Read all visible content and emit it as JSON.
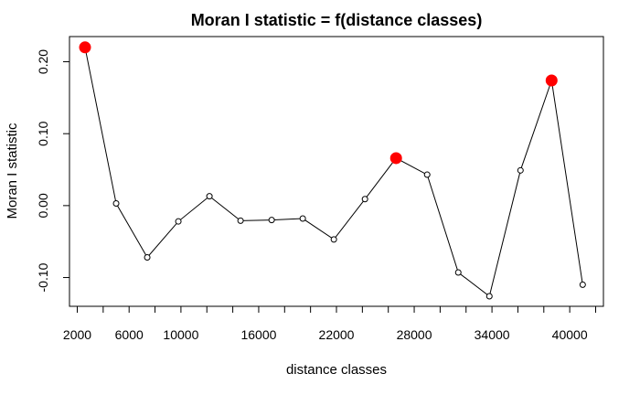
{
  "chart_data": {
    "type": "line",
    "title": "Moran I statistic = f(distance classes)",
    "xlabel": "distance classes",
    "ylabel": "Moran I statistic",
    "x_ticks": [
      2000,
      6000,
      10000,
      16000,
      22000,
      28000,
      34000,
      40000
    ],
    "x_tick_labels": [
      "2000",
      "6000",
      "10000",
      "16000",
      "22000",
      "28000",
      "34000",
      "40000"
    ],
    "x_minor_ticks": [
      4000,
      8000,
      12000,
      14000,
      18000,
      20000,
      24000,
      26000,
      30000,
      32000,
      36000,
      38000,
      42000
    ],
    "y_ticks": [
      -0.1,
      0.0,
      0.1,
      0.2
    ],
    "y_tick_labels": [
      "-0.10",
      "0.00",
      "0.10",
      "0.20"
    ],
    "x_range": [
      1400,
      42600
    ],
    "y_range": [
      -0.14,
      0.235
    ],
    "grid": false,
    "legend": "none",
    "series": [
      {
        "points": [
          {
            "x": 2600,
            "y": 0.22,
            "significant": true
          },
          {
            "x": 5000,
            "y": 0.003,
            "significant": false
          },
          {
            "x": 7400,
            "y": -0.072,
            "significant": false
          },
          {
            "x": 9800,
            "y": -0.022,
            "significant": false
          },
          {
            "x": 12200,
            "y": 0.013,
            "significant": false
          },
          {
            "x": 14600,
            "y": -0.021,
            "significant": false
          },
          {
            "x": 17000,
            "y": -0.02,
            "significant": false
          },
          {
            "x": 19400,
            "y": -0.018,
            "significant": false
          },
          {
            "x": 21800,
            "y": -0.047,
            "significant": false
          },
          {
            "x": 24200,
            "y": 0.009,
            "significant": false
          },
          {
            "x": 26600,
            "y": 0.066,
            "significant": true
          },
          {
            "x": 29000,
            "y": 0.043,
            "significant": false
          },
          {
            "x": 31400,
            "y": -0.093,
            "significant": false
          },
          {
            "x": 33800,
            "y": -0.126,
            "significant": false
          },
          {
            "x": 36200,
            "y": 0.049,
            "significant": false
          },
          {
            "x": 38600,
            "y": 0.174,
            "significant": true
          },
          {
            "x": 41000,
            "y": -0.11,
            "significant": false
          }
        ]
      }
    ],
    "colors": {
      "line": "#000000",
      "point": "#000000",
      "significant": "#ff0000",
      "axis": "#000000",
      "text": "#000000"
    }
  }
}
